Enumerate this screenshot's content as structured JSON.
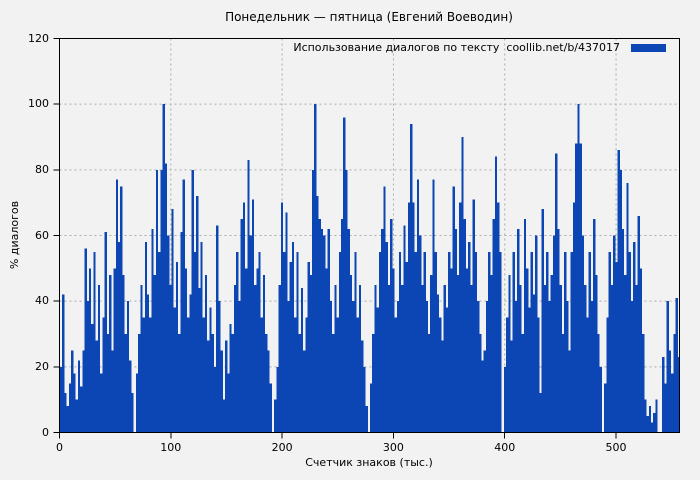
{
  "title": "Понедельник — пятница (Евгений Воеводин)",
  "legend": {
    "label": "Использование диалогов по тексту  coollib.net/b/437017"
  },
  "axes": {
    "y_label": "% диалогов",
    "x_label": "Счетчик знаков (тыс.)",
    "y_ticks": [
      0,
      20,
      40,
      60,
      80,
      100,
      120
    ],
    "x_ticks": [
      0,
      100,
      200,
      300,
      400,
      500
    ]
  },
  "colors": {
    "bar": "#0c46b4",
    "grid": "#ababab",
    "border": "#000000",
    "background": "#f2f2f2",
    "text": "#000000"
  },
  "chart_data": {
    "type": "bar",
    "style": "impulses",
    "title": "Понедельник — пятница (Евгений Воеводин)",
    "xlabel": "Счетчик знаков (тыс.)",
    "ylabel": "% диалогов",
    "xlim": [
      0,
      557
    ],
    "ylim": [
      0,
      120
    ],
    "grid": true,
    "legend_position": "top-right",
    "x_start": 1,
    "x_step": 2,
    "series": [
      {
        "name": "Использование диалогов по тексту  coollib.net/b/437017",
        "values": [
          20,
          42,
          12,
          8,
          15,
          25,
          18,
          10,
          22,
          14,
          25,
          56,
          40,
          50,
          33,
          55,
          28,
          45,
          18,
          35,
          61,
          30,
          48,
          25,
          50,
          77,
          58,
          75,
          48,
          30,
          40,
          22,
          12,
          0,
          18,
          30,
          45,
          35,
          58,
          42,
          35,
          62,
          48,
          80,
          55,
          80,
          100,
          82,
          60,
          45,
          68,
          38,
          52,
          30,
          61,
          77,
          50,
          35,
          42,
          80,
          55,
          72,
          44,
          58,
          35,
          48,
          28,
          38,
          30,
          20,
          63,
          40,
          25,
          10,
          28,
          18,
          33,
          30,
          45,
          55,
          40,
          65,
          70,
          50,
          83,
          60,
          71,
          45,
          50,
          55,
          35,
          48,
          30,
          25,
          15,
          0,
          10,
          20,
          45,
          70,
          55,
          67,
          40,
          52,
          58,
          35,
          55,
          30,
          44,
          25,
          35,
          52,
          48,
          80,
          100,
          72,
          65,
          62,
          60,
          50,
          62,
          40,
          30,
          45,
          35,
          55,
          65,
          96,
          80,
          62,
          48,
          40,
          55,
          35,
          45,
          28,
          20,
          8,
          0,
          15,
          30,
          45,
          38,
          55,
          62,
          75,
          58,
          45,
          65,
          50,
          35,
          40,
          55,
          45,
          63,
          52,
          70,
          94,
          70,
          55,
          77,
          60,
          45,
          55,
          40,
          30,
          48,
          77,
          55,
          42,
          35,
          28,
          45,
          38,
          55,
          50,
          75,
          62,
          48,
          70,
          90,
          65,
          50,
          58,
          45,
          71,
          55,
          40,
          30,
          22,
          25,
          40,
          55,
          48,
          65,
          84,
          70,
          55,
          0,
          20,
          35,
          48,
          28,
          55,
          40,
          62,
          45,
          30,
          65,
          50,
          38,
          55,
          42,
          60,
          35,
          12,
          68,
          45,
          55,
          40,
          48,
          60,
          85,
          62,
          45,
          30,
          55,
          40,
          25,
          55,
          70,
          88,
          100,
          88,
          60,
          45,
          35,
          55,
          40,
          65,
          48,
          30,
          20,
          0,
          15,
          35,
          55,
          45,
          60,
          52,
          86,
          80,
          62,
          48,
          76,
          55,
          40,
          58,
          45,
          66,
          50,
          30,
          10,
          5,
          8,
          3,
          6,
          10,
          0,
          0,
          23,
          15,
          40,
          25,
          18,
          30,
          41,
          23
        ]
      }
    ]
  }
}
